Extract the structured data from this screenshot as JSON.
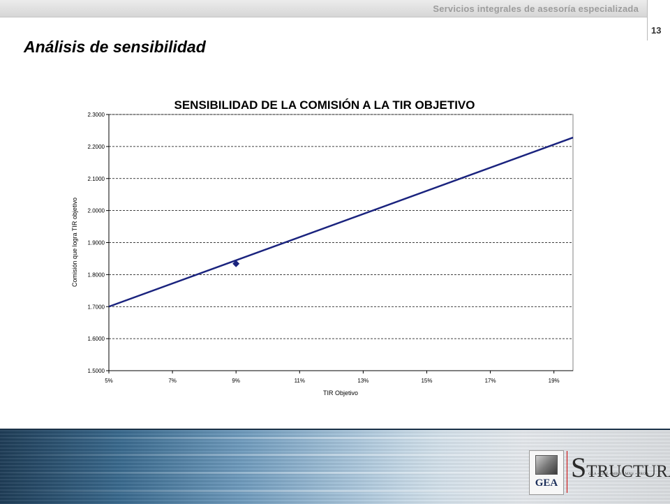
{
  "header": {
    "tagline": "Servicios integrales de asesoría especializada",
    "page_number": "13"
  },
  "slide": {
    "title": "Análisis de sensibilidad"
  },
  "chart_data": {
    "type": "line",
    "title": "SENSIBILIDAD DE LA COMISIÓN A LA TIR OBJETIVO",
    "xlabel": "TIR Objetivo",
    "ylabel": "Comisión que logra TIR objetivo",
    "x_ticks": [
      0.05,
      0.07,
      0.09,
      0.11,
      0.13,
      0.15,
      0.17,
      0.19
    ],
    "x_tick_labels": [
      "5%",
      "7%",
      "9%",
      "11%",
      "13%",
      "15%",
      "17%",
      "19%"
    ],
    "y_ticks": [
      1.5,
      1.6,
      1.7,
      1.8,
      1.9,
      2.0,
      2.1,
      2.2,
      2.3
    ],
    "y_tick_labels": [
      "1.5000",
      "1.6000",
      "1.7000",
      "1.8000",
      "1.9000",
      "2.0000",
      "2.1000",
      "2.2000",
      "2.3000"
    ],
    "xlim": [
      0.05,
      0.196
    ],
    "ylim": [
      1.5,
      2.3
    ],
    "grid": "horizontal-dashed",
    "line_color": "#1a237e",
    "series": [
      {
        "name": "",
        "x": [
          0.05,
          0.196
        ],
        "y": [
          1.7,
          2.228
        ]
      }
    ],
    "marker": {
      "x": 0.09,
      "y": 1.834
    }
  },
  "footer": {
    "logo_gea": "GEA",
    "logo_structura_s": "S",
    "logo_structura_mid": "TRUCTUR",
    "logo_structura_a": "A",
    "logo_structura_sub": "GEA • GAE • MBD • MXV • PROA"
  }
}
